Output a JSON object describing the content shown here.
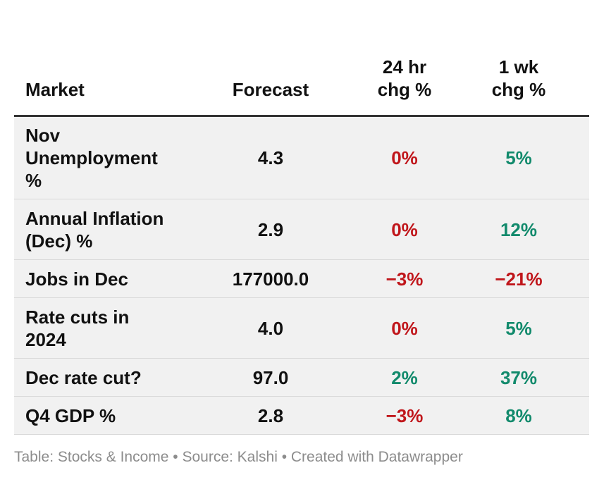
{
  "chart_data": {
    "type": "table",
    "columns": [
      "Market",
      "Forecast",
      "24 hr\nchg %",
      "1 wk\nchg %"
    ],
    "rows": [
      {
        "market": "Nov Unemployment %",
        "forecast": "4.3",
        "chg_24hr": "0%",
        "chg_1wk": "5%",
        "chg_24hr_value": 0,
        "chg_1wk_value": 5
      },
      {
        "market": "Annual Inflation (Dec) %",
        "forecast": "2.9",
        "chg_24hr": "0%",
        "chg_1wk": "12%",
        "chg_24hr_value": 0,
        "chg_1wk_value": 12
      },
      {
        "market": "Jobs in Dec",
        "forecast": "177000.0",
        "chg_24hr": "−3%",
        "chg_1wk": "−21%",
        "chg_24hr_value": -3,
        "chg_1wk_value": -21
      },
      {
        "market": "Rate cuts in 2024",
        "forecast": "4.0",
        "chg_24hr": "0%",
        "chg_1wk": "5%",
        "chg_24hr_value": 0,
        "chg_1wk_value": 5
      },
      {
        "market": "Dec rate cut?",
        "forecast": "97.0",
        "chg_24hr": "2%",
        "chg_1wk": "37%",
        "chg_24hr_value": 2,
        "chg_1wk_value": 37
      },
      {
        "market": "Q4 GDP %",
        "forecast": "2.8",
        "chg_24hr": "−3%",
        "chg_1wk": "8%",
        "chg_24hr_value": -3,
        "chg_1wk_value": 8
      }
    ],
    "colors": {
      "positive": "#128a6c",
      "negative_or_zero": "#c0161b",
      "row_shade": "#f1f1f1"
    }
  },
  "footer": {
    "text": "Table: Stocks & Income • Source: Kalshi • Created with Datawrapper"
  }
}
